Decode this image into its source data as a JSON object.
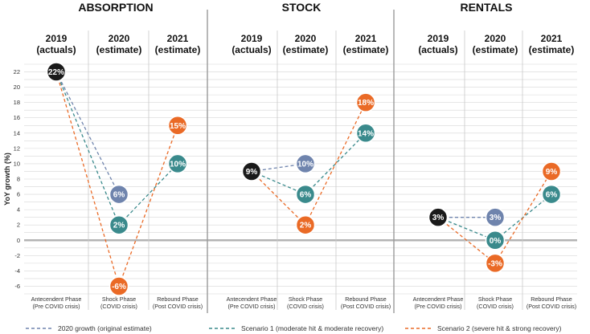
{
  "chart_data": {
    "type": "line",
    "ylabel": "YoY growth (%)",
    "ylim": [
      -7,
      23
    ],
    "yticks": [
      -6,
      -4,
      -2,
      0,
      2,
      4,
      6,
      8,
      10,
      12,
      14,
      16,
      18,
      20,
      22
    ],
    "columns": [
      {
        "year": "2019",
        "sub": "(actuals)",
        "phase": "Antecendent Phase",
        "phase_sub": "(Pre COVID crisis)"
      },
      {
        "year": "2020",
        "sub": "(estimate)",
        "phase": "Shock Phase",
        "phase_sub": "(COVID crisis)"
      },
      {
        "year": "2021",
        "sub": "(estimate)",
        "phase": "Rebound Phase",
        "phase_sub": "(Post COVID crisis)"
      }
    ],
    "panels": [
      {
        "title": "ABSORPTION",
        "actual": {
          "value": 22,
          "label": "22%"
        },
        "original": {
          "value": 6,
          "label": "6%"
        },
        "scenario1": [
          {
            "value": 2,
            "label": "2%"
          },
          {
            "value": 10,
            "label": "10%"
          }
        ],
        "scenario2": [
          {
            "value": -6,
            "label": "-6%"
          },
          {
            "value": 15,
            "label": "15%"
          }
        ]
      },
      {
        "title": "STOCK",
        "actual": {
          "value": 9,
          "label": "9%"
        },
        "original": {
          "value": 10,
          "label": "10%"
        },
        "scenario1": [
          {
            "value": 6,
            "label": "6%"
          },
          {
            "value": 14,
            "label": "14%"
          }
        ],
        "scenario2": [
          {
            "value": 2,
            "label": "2%"
          },
          {
            "value": 18,
            "label": "18%"
          }
        ]
      },
      {
        "title": "RENTALS",
        "actual": {
          "value": 3,
          "label": "3%"
        },
        "original": {
          "value": 3,
          "label": "3%"
        },
        "scenario1": [
          {
            "value": 0,
            "label": "0%"
          },
          {
            "value": 6,
            "label": "6%"
          }
        ],
        "scenario2": [
          {
            "value": -3,
            "label": "-3%"
          },
          {
            "value": 9,
            "label": "9%"
          }
        ]
      }
    ],
    "legend": [
      {
        "key": "original",
        "label": "2020 growth (original estimate)",
        "color": "#6f84ad"
      },
      {
        "key": "scenario1",
        "label": "Scenario 1 (moderate hit & moderate recovery)",
        "color": "#3a8a8c"
      },
      {
        "key": "scenario2",
        "label": "Scenario 2 (severe hit & strong recovery)",
        "color": "#ea6a26"
      }
    ],
    "colors": {
      "actual": "#1a1a1a",
      "original": "#6f84ad",
      "scenario1": "#3a8a8c",
      "scenario2": "#ea6a26",
      "grid": "#d6d6d6",
      "zero": "#b3b3b3"
    }
  }
}
